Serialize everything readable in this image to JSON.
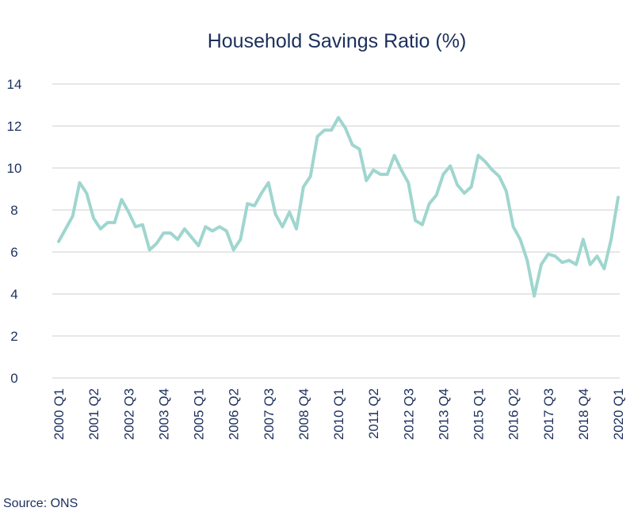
{
  "chart_data": {
    "type": "line",
    "title": "Household Savings Ratio (%)",
    "source": "Source: ONS",
    "ylim": [
      0,
      14
    ],
    "yticks": [
      0,
      2,
      4,
      6,
      8,
      10,
      12,
      14
    ],
    "grid": true,
    "x_tick_labels": [
      "2000 Q1",
      "2001 Q2",
      "2002 Q3",
      "2003 Q4",
      "2005 Q1",
      "2006 Q2",
      "2007 Q3",
      "2008 Q4",
      "2010 Q1",
      "2011 Q2",
      "2012 Q3",
      "2013 Q4",
      "2015 Q1",
      "2016 Q2",
      "2017 Q3",
      "2018 Q4",
      "2020 Q1"
    ],
    "x": [
      "2000 Q1",
      "2000 Q2",
      "2000 Q3",
      "2000 Q4",
      "2001 Q1",
      "2001 Q2",
      "2001 Q3",
      "2001 Q4",
      "2002 Q1",
      "2002 Q2",
      "2002 Q3",
      "2002 Q4",
      "2003 Q1",
      "2003 Q2",
      "2003 Q3",
      "2003 Q4",
      "2004 Q1",
      "2004 Q2",
      "2004 Q3",
      "2004 Q4",
      "2005 Q1",
      "2005 Q2",
      "2005 Q3",
      "2005 Q4",
      "2006 Q1",
      "2006 Q2",
      "2006 Q3",
      "2006 Q4",
      "2007 Q1",
      "2007 Q2",
      "2007 Q3",
      "2007 Q4",
      "2008 Q1",
      "2008 Q2",
      "2008 Q3",
      "2008 Q4",
      "2009 Q1",
      "2009 Q2",
      "2009 Q3",
      "2009 Q4",
      "2010 Q1",
      "2010 Q2",
      "2010 Q3",
      "2010 Q4",
      "2011 Q1",
      "2011 Q2",
      "2011 Q3",
      "2011 Q4",
      "2012 Q1",
      "2012 Q2",
      "2012 Q3",
      "2012 Q4",
      "2013 Q1",
      "2013 Q2",
      "2013 Q3",
      "2013 Q4",
      "2014 Q1",
      "2014 Q2",
      "2014 Q3",
      "2014 Q4",
      "2015 Q1",
      "2015 Q2",
      "2015 Q3",
      "2015 Q4",
      "2016 Q1",
      "2016 Q2",
      "2016 Q3",
      "2016 Q4",
      "2017 Q1",
      "2017 Q2",
      "2017 Q3",
      "2017 Q4",
      "2018 Q1",
      "2018 Q2",
      "2018 Q3",
      "2018 Q4",
      "2019 Q1",
      "2019 Q2",
      "2019 Q3",
      "2019 Q4",
      "2020 Q1"
    ],
    "series": [
      {
        "color": "#9fd6cf",
        "values": [
          6.5,
          7.1,
          7.7,
          9.3,
          8.8,
          7.6,
          7.1,
          7.4,
          7.4,
          8.5,
          7.9,
          7.2,
          7.3,
          6.1,
          6.4,
          6.9,
          6.9,
          6.6,
          7.1,
          6.7,
          6.3,
          7.2,
          7.0,
          7.2,
          7.0,
          6.1,
          6.6,
          8.3,
          8.2,
          8.8,
          9.3,
          7.8,
          7.2,
          7.9,
          7.1,
          9.1,
          9.6,
          11.5,
          11.8,
          11.8,
          12.4,
          11.9,
          11.1,
          10.9,
          9.4,
          9.9,
          9.7,
          9.7,
          10.6,
          9.9,
          9.3,
          7.5,
          7.3,
          8.3,
          8.7,
          9.7,
          10.1,
          9.2,
          8.8,
          9.1,
          10.6,
          10.3,
          9.9,
          9.6,
          8.9,
          7.2,
          6.6,
          5.6,
          3.9,
          5.4,
          5.9,
          5.8,
          5.5,
          5.6,
          5.4,
          6.6,
          5.4,
          5.8,
          5.2,
          6.6,
          8.6
        ]
      }
    ]
  }
}
